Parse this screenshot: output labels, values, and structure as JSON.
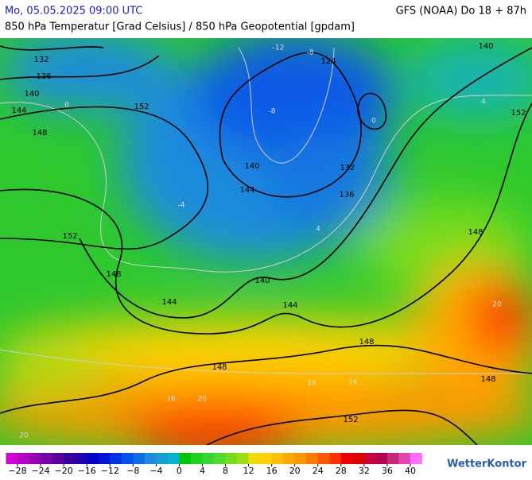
{
  "header": {
    "datetime": "Mo, 05.05.2025 09:00 UTC",
    "model": "GFS (NOAA) Do 18 + 87h",
    "subtitle": "850 hPa Temperatur [Grad Celsius] / 850 hPa Geopotential [gpdam]"
  },
  "map": {
    "isohypse_labels": [
      132,
      136,
      140,
      144,
      148,
      152,
      152,
      148,
      144,
      140,
      144,
      132,
      136,
      124,
      140,
      152,
      148,
      140,
      144,
      148,
      148,
      148,
      152
    ],
    "isotherm_labels": [
      -12,
      -8,
      -8,
      0,
      4,
      0,
      -4,
      4,
      20,
      20,
      16,
      20,
      16,
      16
    ]
  },
  "colorbar": {
    "xlim": [
      -30,
      42
    ],
    "colors": [
      "#d200d2",
      "#b400c8",
      "#9600b4",
      "#7800aa",
      "#5a00a0",
      "#3c00a0",
      "#1e00b4",
      "#0000c8",
      "#0014dc",
      "#0032e6",
      "#0050f0",
      "#0a6ee6",
      "#1e8cdc",
      "#14a0d2",
      "#00b4d2",
      "#00c800",
      "#1ed21e",
      "#32d732",
      "#50dc28",
      "#78dc1e",
      "#a0dc14",
      "#f0dc00",
      "#ffd200",
      "#ffbe00",
      "#ffaa00",
      "#ff9600",
      "#ff7800",
      "#ff5a00",
      "#ff3200",
      "#f00000",
      "#dc0000",
      "#c8003c",
      "#b40050",
      "#c8287a",
      "#e646b4",
      "#ff6eff"
    ],
    "ticks": [
      {
        "value": -28,
        "label": "−28"
      },
      {
        "value": -24,
        "label": "−24"
      },
      {
        "value": -20,
        "label": "−20"
      },
      {
        "value": -16,
        "label": "−16"
      },
      {
        "value": -12,
        "label": "−12"
      },
      {
        "value": -8,
        "label": "−8"
      },
      {
        "value": -4,
        "label": "−4"
      },
      0,
      4,
      8,
      12,
      16,
      20,
      24,
      28,
      32,
      36,
      40
    ]
  },
  "logo": "WetterKontor"
}
